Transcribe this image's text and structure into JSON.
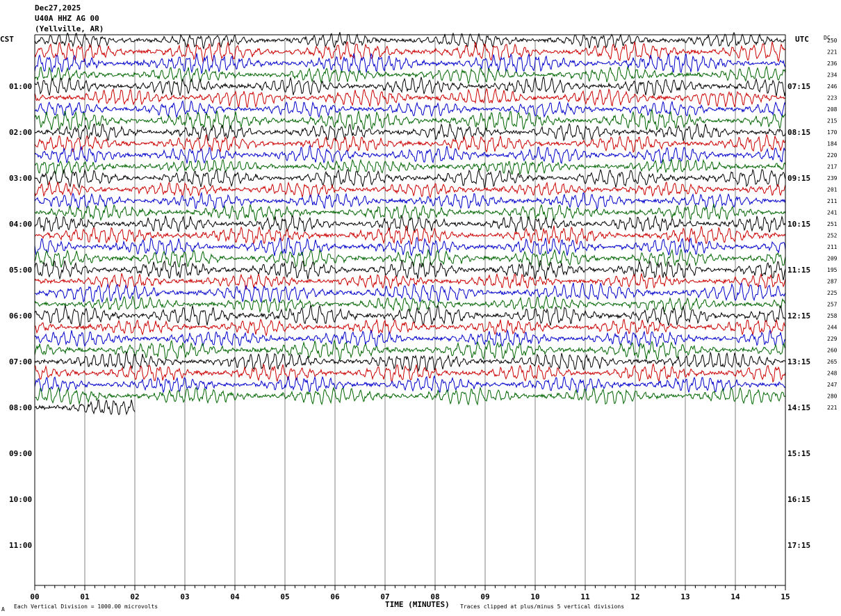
{
  "header": {
    "date": "Dec27,2025",
    "station": "U40A HHZ AG 00",
    "location": "(Yellville, AR)"
  },
  "left_tz": "CST",
  "right_tz": "UTC",
  "dc_header": "DC",
  "footer": {
    "division_note": "Each Vertical Division = 1000.00 microvolts",
    "clip_note": "Traces clipped at plus/minus 5 vertical divisions",
    "corner_mark": "A"
  },
  "colors": {
    "trace_cycle": [
      "#000000",
      "#cc0000",
      "#0000cc",
      "#006600"
    ],
    "grid": "#808080"
  },
  "chart_data": {
    "type": "line",
    "title": "",
    "xlabel": "TIME (MINUTES)",
    "ylabel": "",
    "xlim": [
      0,
      15
    ],
    "x_ticks": [
      "00",
      "01",
      "02",
      "03",
      "04",
      "05",
      "06",
      "07",
      "08",
      "09",
      "10",
      "11",
      "12",
      "13",
      "14",
      "15"
    ],
    "left_hour_labels": [
      "01:00",
      "02:00",
      "03:00",
      "04:00",
      "05:00",
      "06:00",
      "07:00",
      "08:00",
      "09:00",
      "10:00",
      "11:00"
    ],
    "right_hour_labels": [
      "07:15",
      "08:15",
      "09:15",
      "10:15",
      "11:15",
      "12:15",
      "13:15",
      "14:15",
      "15:15",
      "16:15",
      "17:15"
    ],
    "traces_per_hour": 4,
    "minutes_per_trace": 15,
    "dc_offsets": [
      250,
      221,
      236,
      234,
      246,
      223,
      208,
      215,
      170,
      184,
      220,
      217,
      239,
      201,
      211,
      241,
      251,
      252,
      211,
      209,
      195,
      287,
      225,
      257,
      258,
      244,
      229,
      260,
      265,
      248,
      247,
      280,
      221
    ],
    "last_trace_minutes": 2,
    "clip_divisions": 5,
    "microvolts_per_division": 1000.0
  }
}
